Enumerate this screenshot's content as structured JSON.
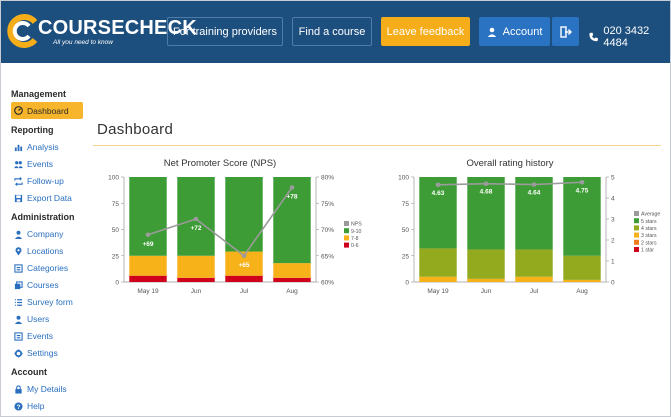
{
  "header": {
    "logo_word": "COURSECHECK",
    "logo_tagline": "All you need to know",
    "nav": {
      "training_providers": "For training providers",
      "find_course": "Find a course",
      "leave_feedback": "Leave feedback",
      "account": "Account"
    },
    "phone": "020 3432 4484",
    "colors": {
      "header_bg": "#1d4f7e",
      "feedback": "#f6ad1a",
      "account": "#2a72c2"
    }
  },
  "sidebar": {
    "management": "Management",
    "dashboard": "Dashboard",
    "reporting": "Reporting",
    "reporting_items": [
      "Analysis",
      "Events",
      "Follow-up",
      "Export Data"
    ],
    "administration": "Administration",
    "admin_items": [
      "Company",
      "Locations",
      "Categories",
      "Courses",
      "Survey form",
      "Users",
      "Events",
      "Settings"
    ],
    "account": "Account",
    "account_items": [
      "My Details",
      "Help"
    ]
  },
  "page_title": "Dashboard",
  "chart_data": [
    {
      "type": "bar",
      "title": "Net Promoter Score (NPS)",
      "categories": [
        "May 19",
        "Jun",
        "Jul",
        "Aug"
      ],
      "stacked": true,
      "ylim": [
        0,
        100
      ],
      "y_ticks": [
        "0",
        "25",
        "50",
        "75",
        "100"
      ],
      "y2lim": [
        60,
        80
      ],
      "y2_ticks": [
        "60%",
        "65%",
        "70%",
        "75%",
        "80%"
      ],
      "series": [
        {
          "name": "0-6",
          "color": "#d0021b",
          "values": [
            6,
            4,
            6,
            4
          ]
        },
        {
          "name": "7-8",
          "color": "#f7b219",
          "values": [
            19,
            21,
            23,
            14
          ]
        },
        {
          "name": "9-10",
          "color": "#3d9c35",
          "values": [
            75,
            75,
            71,
            82
          ]
        }
      ],
      "line": {
        "name": "NPS",
        "color": "#9b9b9b",
        "values": [
          69,
          72,
          65,
          78
        ],
        "labels": [
          "+69",
          "+72",
          "+65",
          "+78"
        ]
      },
      "legend": [
        "NPS",
        "9-10",
        "7-8",
        "0-6"
      ],
      "legend_position": "right"
    },
    {
      "type": "bar",
      "title": "Overall rating history",
      "categories": [
        "May 19",
        "Jun",
        "Jul",
        "Aug"
      ],
      "stacked": true,
      "ylim": [
        0,
        100
      ],
      "y_ticks": [
        "0",
        "25",
        "50",
        "75",
        "100"
      ],
      "y2lim": [
        0,
        5
      ],
      "y2_ticks": [
        "0",
        "1",
        "2",
        "3",
        "4",
        "5"
      ],
      "series": [
        {
          "name": "1 star",
          "color": "#d0021b",
          "values": [
            0,
            0,
            0,
            0
          ]
        },
        {
          "name": "2 stars",
          "color": "#f07c1e",
          "values": [
            0,
            0,
            0,
            0
          ]
        },
        {
          "name": "3 stars",
          "color": "#f7b219",
          "values": [
            5,
            3,
            5,
            2
          ]
        },
        {
          "name": "4 stars",
          "color": "#93a91e",
          "values": [
            27,
            28,
            26,
            23
          ]
        },
        {
          "name": "5 stars",
          "color": "#3d9c35",
          "values": [
            68,
            69,
            69,
            75
          ]
        }
      ],
      "line": {
        "name": "Average",
        "color": "#9b9b9b",
        "values": [
          4.63,
          4.68,
          4.64,
          4.75
        ],
        "labels": [
          "4.63",
          "4.68",
          "4.64",
          "4.75"
        ]
      },
      "legend": [
        "Average",
        "5 stars",
        "4 stars",
        "3 stars",
        "2 stars",
        "1 star"
      ],
      "legend_position": "right"
    }
  ]
}
